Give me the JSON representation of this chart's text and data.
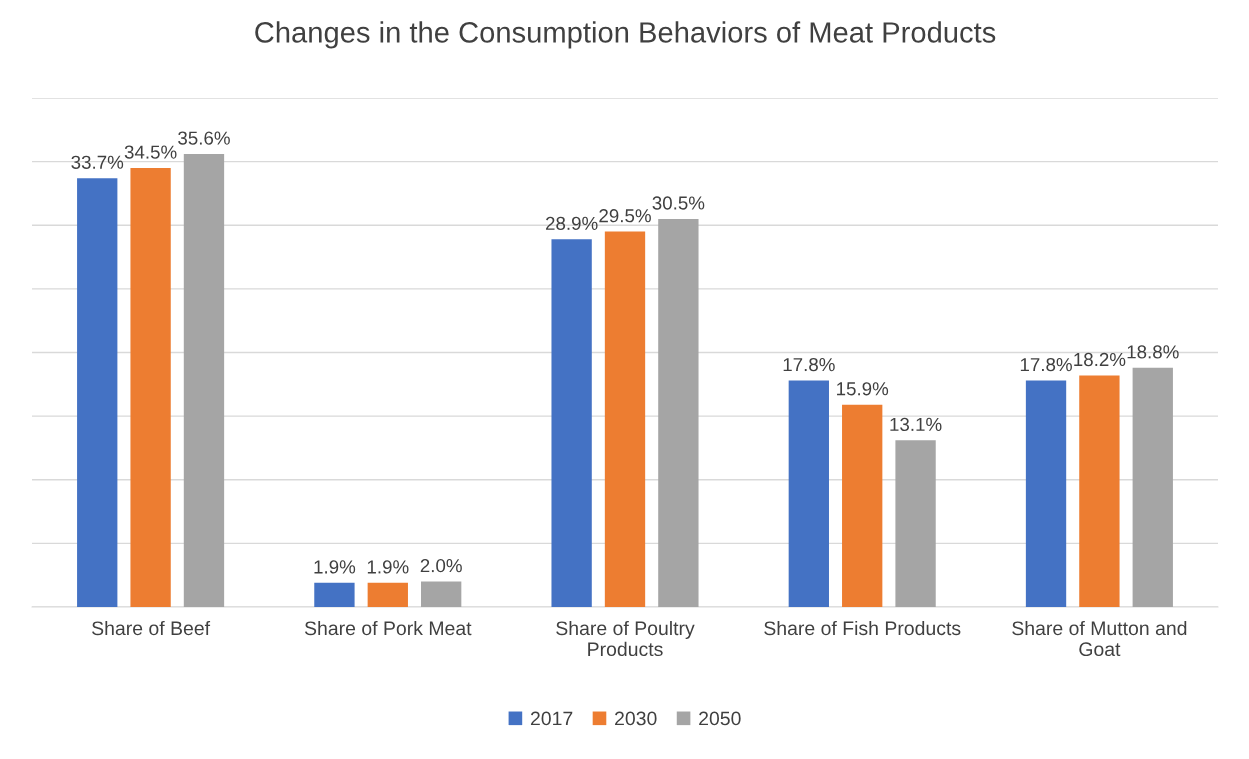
{
  "chart_data": {
    "type": "bar",
    "title": "Changes in the Consumption Behaviors of Meat Products",
    "categories": [
      "Share of Beef",
      "Share of Pork Meat",
      "Share of Poultry Products",
      "Share of Fish Products",
      "Share of Mutton and Goat"
    ],
    "series": [
      {
        "name": "2017",
        "color": "#4472c4",
        "values": [
          33.7,
          1.9,
          28.9,
          17.8,
          17.8
        ],
        "value_labels": [
          "33.7%",
          "1.9%",
          "28.9%",
          "17.8%",
          "17.8%"
        ]
      },
      {
        "name": "2030",
        "color": "#ed7d31",
        "values": [
          34.5,
          1.9,
          29.5,
          15.9,
          18.2
        ],
        "value_labels": [
          "34.5%",
          "1.9%",
          "29.5%",
          "15.9%",
          "18.2%"
        ]
      },
      {
        "name": "2050",
        "color": "#a5a5a5",
        "values": [
          35.6,
          2.0,
          30.5,
          13.1,
          18.8
        ],
        "value_labels": [
          "35.6%",
          "2.0%",
          "30.5%",
          "13.1%",
          "18.8%"
        ]
      }
    ],
    "ylim": [
      0,
      40
    ],
    "yticks": [
      {
        "value": 0,
        "label": null
      },
      {
        "value": 5,
        "label": null
      },
      {
        "value": 10,
        "label": null
      },
      {
        "value": 15,
        "label": null
      },
      {
        "value": 20,
        "label": null
      },
      {
        "value": 25,
        "label": null
      },
      {
        "value": 30,
        "label": null
      },
      {
        "value": 35,
        "label": null
      },
      {
        "value": 40,
        "label": null
      }
    ],
    "tick_labels": "x",
    "grid": "y",
    "legend": "bottom"
  }
}
